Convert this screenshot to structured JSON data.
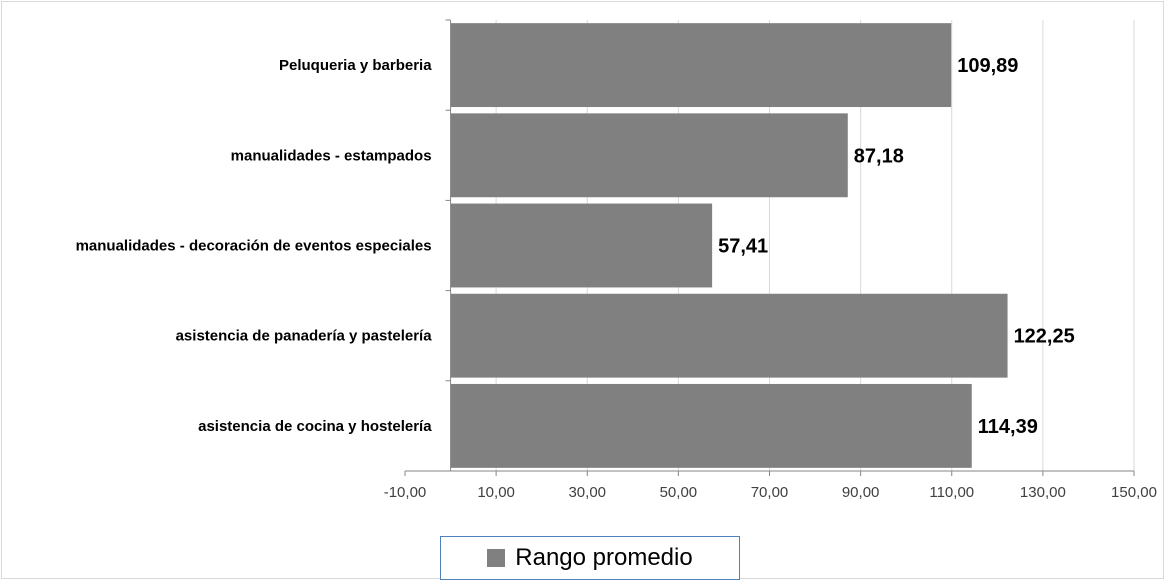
{
  "chart_data": {
    "type": "bar",
    "orientation": "horizontal",
    "categories": [
      "Peluqueria y barberia",
      "manualidades - estampados",
      "manualidades - decoración de eventos especiales",
      "asistencia de panadería y  pastelería",
      "asistencia de cocina y hostelería"
    ],
    "series": [
      {
        "name": "Rango promedio",
        "values": [
          109.89,
          87.18,
          57.41,
          122.25,
          114.39
        ],
        "value_labels": [
          "109,89",
          "87,18",
          "57,41",
          "122,25",
          "114,39"
        ],
        "color": "#808080"
      }
    ],
    "xlim": [
      -10,
      150
    ],
    "xticks": [
      -10,
      10,
      30,
      50,
      70,
      90,
      110,
      130,
      150
    ],
    "xtick_labels": [
      "-10,00",
      "10,00",
      "30,00",
      "50,00",
      "70,00",
      "90,00",
      "110,00",
      "130,00",
      "150,00"
    ],
    "grid": "vertical",
    "legend": "bottom",
    "gridline_color": "#d9d9d9",
    "axis_color": "#868686"
  }
}
